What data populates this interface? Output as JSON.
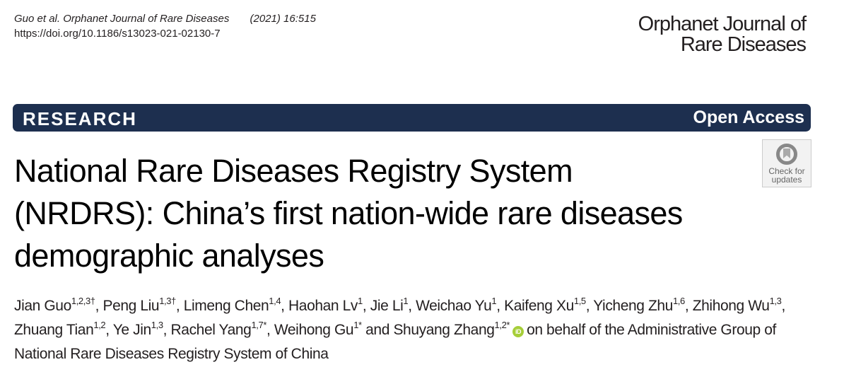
{
  "citation": {
    "authors_journal": "Guo et al. Orphanet Journal of Rare Diseases",
    "year_volume": "(2021) 16:515",
    "doi": "https://doi.org/10.1186/s13023-021-02130-7"
  },
  "journal_logo": {
    "line1": "Orphanet Journal of",
    "line2": "Rare Diseases"
  },
  "banner": {
    "type": "RESEARCH",
    "access": "Open Access",
    "color": "#1d2f4f"
  },
  "check_updates": {
    "line1": "Check for",
    "line2": "updates"
  },
  "title": {
    "line1": "National Rare Diseases Registry System",
    "line2": "(NRDRS): China’s first nation-wide rare diseases",
    "line3": "demographic analyses"
  },
  "authors": [
    {
      "name": "Jian Guo",
      "sup": "1,2,3†",
      "sep": ", "
    },
    {
      "name": "Peng Liu",
      "sup": "1,3†",
      "sep": ", "
    },
    {
      "name": "Limeng Chen",
      "sup": "1,4",
      "sep": ", "
    },
    {
      "name": "Haohan Lv",
      "sup": "1",
      "sep": ", "
    },
    {
      "name": "Jie Li",
      "sup": "1",
      "sep": ", "
    },
    {
      "name": "Weichao Yu",
      "sup": "1",
      "sep": ", "
    },
    {
      "name": "Kaifeng Xu",
      "sup": "1,5",
      "sep": ", "
    },
    {
      "name": "Yicheng Zhu",
      "sup": "1,6",
      "sep": ", "
    },
    {
      "name": "Zhihong Wu",
      "sup": "1,3",
      "sep": ", "
    },
    {
      "name": "Zhuang Tian",
      "sup": "1,2",
      "sep": ", "
    },
    {
      "name": "Ye Jin",
      "sup": "1,3",
      "sep": ", "
    },
    {
      "name": "Rachel Yang",
      "sup": "1,7*",
      "sep": ", "
    },
    {
      "name": "Weihong Gu",
      "sup": "1*",
      "sep": " and "
    },
    {
      "name": "Shuyang Zhang",
      "sup": "1,2*",
      "sep": ""
    }
  ],
  "orcid_icon": "orcid-icon",
  "orcid_text": "iD",
  "on_behalf": "on behalf of the Administrative Group of National Rare Diseases Registry System of China"
}
